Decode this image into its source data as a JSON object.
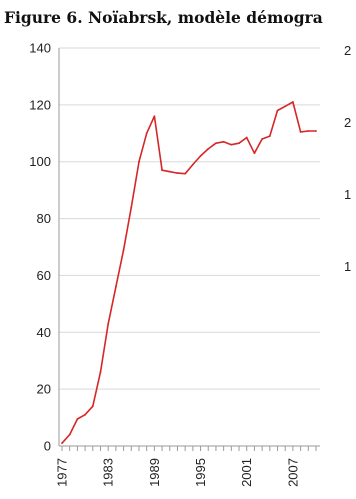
{
  "title": "Figure 6. Noïabrsk, modèle démogra",
  "chart_data": {
    "type": "line",
    "title": "Figure 6. Noïabrsk, modèle démogra",
    "xlabel": "",
    "ylabel": "",
    "ylim": [
      0,
      140
    ],
    "xlim": [
      1977,
      2010
    ],
    "y_ticks": [
      "0",
      "20",
      "40",
      "60",
      "80",
      "100",
      "120",
      "140"
    ],
    "x_ticks": [
      "1977",
      "1983",
      "1989",
      "1995",
      "2001",
      "2007"
    ],
    "right_axis_partial_labels": [
      "2",
      "2",
      "1",
      "1"
    ],
    "grid": true,
    "color": "#d62728",
    "series": [
      {
        "x": [
          1977,
          1978,
          1979,
          1980,
          1981,
          1982,
          1983,
          1984,
          1985,
          1986,
          1987,
          1988,
          1989,
          1990,
          1991,
          1992,
          1993,
          1994,
          1995,
          1996,
          1997,
          1998,
          1999,
          2000,
          2001,
          2002,
          2003,
          2004,
          2005,
          2006,
          2007,
          2008,
          2009,
          2010
        ],
        "values": [
          1,
          4,
          9.5,
          11,
          14,
          26,
          43,
          56,
          69,
          84,
          100,
          110,
          116,
          97,
          96.5,
          96,
          95.8,
          99,
          102,
          104.5,
          106.5,
          107,
          106,
          106.5,
          108.5,
          103,
          108,
          109,
          118,
          119.5,
          121,
          110.5,
          110.8,
          110.8
        ]
      }
    ]
  }
}
